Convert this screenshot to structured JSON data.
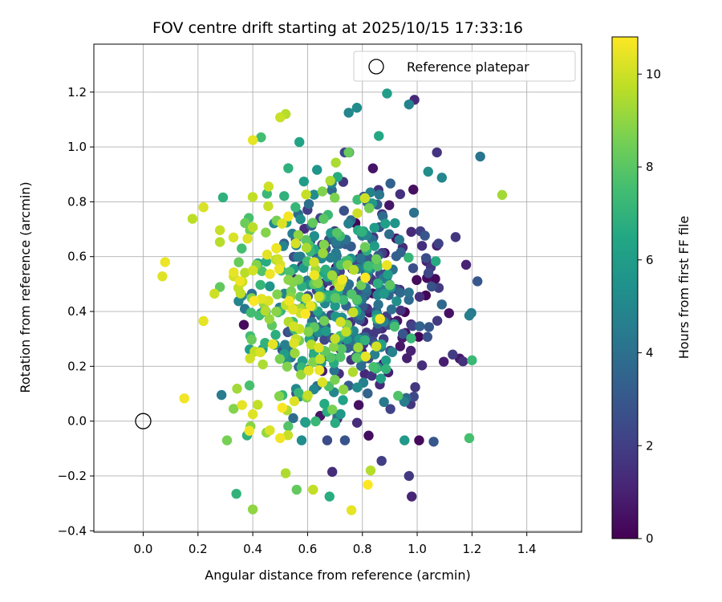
{
  "chart_data": {
    "type": "scatter",
    "title": "FOV centre drift starting at 2025/10/15 17:33:16",
    "xlabel": "Angular distance from reference (arcmin)",
    "ylabel": "Rotation from reference (arcmin)",
    "xlim": [
      -0.18,
      1.6
    ],
    "ylim": [
      -0.405,
      1.375
    ],
    "x_ticks": [
      0.0,
      0.2,
      0.4,
      0.6,
      0.8,
      1.0,
      1.2,
      1.4
    ],
    "x_tick_labels": [
      "0.0",
      "0.2",
      "0.4",
      "0.6",
      "0.8",
      "1.0",
      "1.2",
      "1.4"
    ],
    "y_ticks": [
      -0.4,
      -0.2,
      0.0,
      0.2,
      0.4,
      0.6,
      0.8,
      1.0,
      1.2
    ],
    "y_tick_labels": [
      "−0.4",
      "−0.2",
      "0.0",
      "0.2",
      "0.4",
      "0.6",
      "0.8",
      "1.0",
      "1.2"
    ],
    "grid": true,
    "legend": {
      "position": "top-right",
      "entries": [
        "Reference platepar"
      ]
    },
    "reference_point": {
      "x": 0.0,
      "y": 0.0,
      "label": "Reference platepar"
    },
    "colorbar": {
      "label": "Hours from first FF file",
      "range": [
        0,
        10.8
      ],
      "ticks": [
        0,
        2,
        4,
        6,
        8,
        10
      ],
      "tick_labels": [
        "0",
        "2",
        "4",
        "6",
        "8",
        "10"
      ],
      "colormap": "viridis"
    },
    "series": [
      {
        "name": "FOV centre drift",
        "generated_count": 620,
        "points": [
          {
            "x": 0.89,
            "y": 1.195,
            "h": 6.0
          },
          {
            "x": 0.99,
            "y": 1.172,
            "h": 1.3
          },
          {
            "x": 0.78,
            "y": 1.143,
            "h": 5.2
          },
          {
            "x": 0.75,
            "y": 1.125,
            "h": 5.0
          },
          {
            "x": 0.52,
            "y": 1.12,
            "h": 9.6
          },
          {
            "x": 0.5,
            "y": 1.108,
            "h": 9.9
          },
          {
            "x": 0.97,
            "y": 1.155,
            "h": 4.8
          },
          {
            "x": 0.86,
            "y": 1.04,
            "h": 6.5
          },
          {
            "x": 0.43,
            "y": 1.035,
            "h": 7.5
          },
          {
            "x": 0.4,
            "y": 1.025,
            "h": 10.4
          },
          {
            "x": 0.57,
            "y": 1.018,
            "h": 6.3
          },
          {
            "x": 0.75,
            "y": 0.98,
            "h": 8.3
          },
          {
            "x": 1.23,
            "y": 0.965,
            "h": 4.2
          },
          {
            "x": 1.04,
            "y": 0.91,
            "h": 5.3
          },
          {
            "x": 1.09,
            "y": 0.888,
            "h": 5.0
          },
          {
            "x": 1.31,
            "y": 0.825,
            "h": 9.3
          },
          {
            "x": 0.18,
            "y": 0.738,
            "h": 9.7
          },
          {
            "x": 0.22,
            "y": 0.78,
            "h": 10.2
          },
          {
            "x": 0.08,
            "y": 0.58,
            "h": 10.5
          },
          {
            "x": 0.07,
            "y": 0.528,
            "h": 10.3
          },
          {
            "x": 0.15,
            "y": 0.083,
            "h": 10.6
          },
          {
            "x": 0.26,
            "y": 0.465,
            "h": 10.0
          },
          {
            "x": 0.22,
            "y": 0.365,
            "h": 10.4
          },
          {
            "x": 0.34,
            "y": -0.265,
            "h": 7.0
          },
          {
            "x": 0.4,
            "y": -0.322,
            "h": 9.0
          },
          {
            "x": 0.76,
            "y": -0.325,
            "h": 10.4
          },
          {
            "x": 0.98,
            "y": -0.275,
            "h": 1.1
          },
          {
            "x": 0.97,
            "y": -0.2,
            "h": 1.8
          },
          {
            "x": 1.19,
            "y": -0.062,
            "h": 7.6
          },
          {
            "x": 1.2,
            "y": 0.222,
            "h": 7.3
          },
          {
            "x": 1.22,
            "y": 0.51,
            "h": 3.0
          },
          {
            "x": 1.19,
            "y": 0.385,
            "h": 4.6
          },
          {
            "x": 0.52,
            "y": -0.19,
            "h": 9.5
          },
          {
            "x": 0.5,
            "y": -0.062,
            "h": 10.6
          },
          {
            "x": 0.4,
            "y": 0.025,
            "h": 10.3
          },
          {
            "x": 0.33,
            "y": 0.045,
            "h": 8.8
          },
          {
            "x": 0.56,
            "y": -0.25,
            "h": 8.2
          },
          {
            "x": 0.62,
            "y": -0.25,
            "h": 9.8
          },
          {
            "x": 0.68,
            "y": -0.275,
            "h": 6.7
          },
          {
            "x": 0.69,
            "y": -0.185,
            "h": 1.4
          },
          {
            "x": 0.83,
            "y": -0.18,
            "h": 9.6
          },
          {
            "x": 0.82,
            "y": -0.232,
            "h": 10.8
          },
          {
            "x": 0.87,
            "y": -0.145,
            "h": 2.0
          },
          {
            "x": 1.06,
            "y": -0.075,
            "h": 3.0
          }
        ]
      }
    ]
  }
}
